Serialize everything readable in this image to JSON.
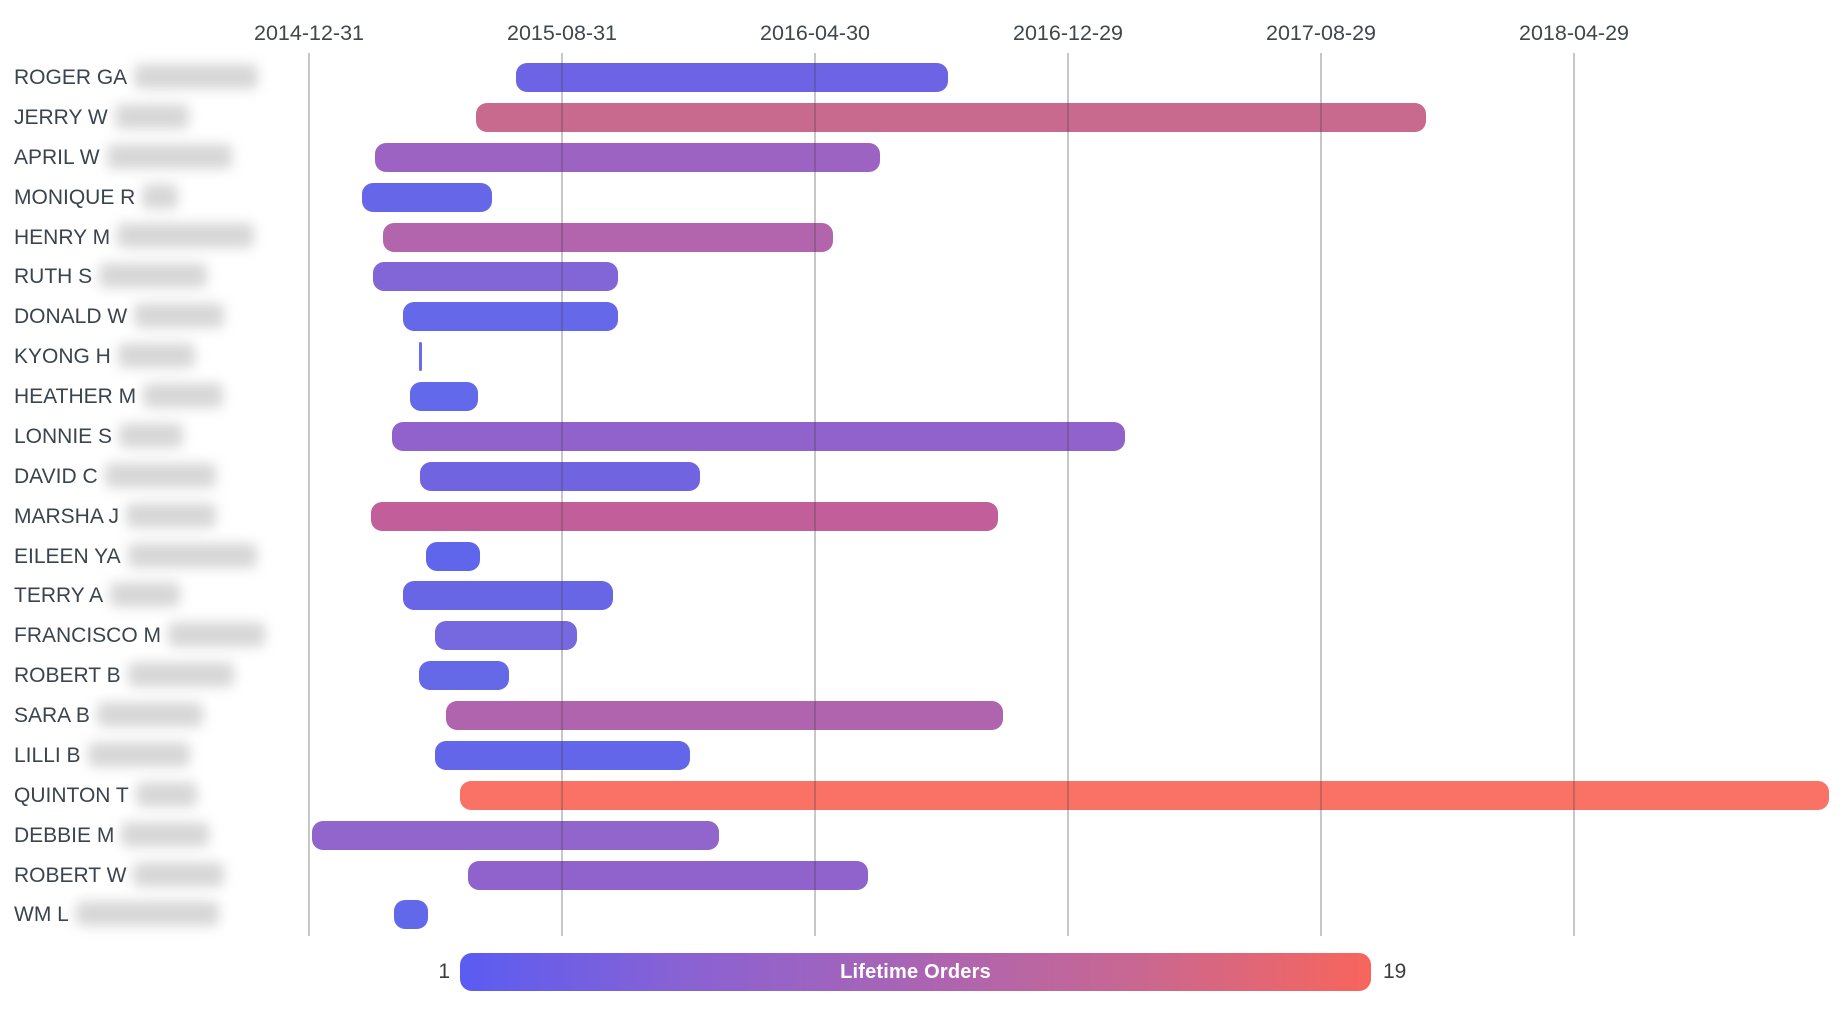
{
  "chart_data": {
    "type": "gantt",
    "title": "",
    "x_axis": {
      "tick_labels": [
        "2014-12-31",
        "2015-08-31",
        "2016-04-30",
        "2016-12-29",
        "2017-08-29",
        "2018-04-29"
      ],
      "tick_interval_days": 243,
      "grid": "vertical-lines"
    },
    "legend": {
      "title": "Lifetime Orders",
      "min_label": "1",
      "max_label": "19",
      "gradient": [
        "#5a5cf2",
        "#8a62d3",
        "#aa64b4",
        "#ca6790",
        "#f8655c"
      ],
      "position": "bottom-center"
    },
    "rows": [
      {
        "label": "ROGER GA",
        "redacted_label_width": 124,
        "start": "2015-07-18",
        "end": "2016-09-05",
        "color": "#6c64e4"
      },
      {
        "label": "JERRY W",
        "redacted_label_width": 74,
        "start": "2015-06-09",
        "end": "2017-12-08",
        "color": "#c76a8e"
      },
      {
        "label": "APRIL W",
        "redacted_label_width": 125,
        "start": "2015-03-04",
        "end": "2016-07-01",
        "color": "#9d63c3"
      },
      {
        "label": "MONIQUE R",
        "redacted_label_width": 36,
        "start": "2015-02-20",
        "end": "2015-06-25",
        "color": "#6567e8"
      },
      {
        "label": "HENRY M",
        "redacted_label_width": 137,
        "start": "2015-03-12",
        "end": "2016-05-17",
        "color": "#b264ac"
      },
      {
        "label": "RUTH S",
        "redacted_label_width": 108,
        "start": "2015-03-02",
        "end": "2015-10-24",
        "color": "#8266d8"
      },
      {
        "label": "DONALD W",
        "redacted_label_width": 90,
        "start": "2015-03-31",
        "end": "2015-10-24",
        "color": "#6568e8"
      },
      {
        "label": "KYONG H",
        "redacted_label_width": 77,
        "start": "2015-04-16",
        "end": "2015-04-19",
        "color": "#6b6ce8"
      },
      {
        "label": "HEATHER M",
        "redacted_label_width": 80,
        "start": "2015-04-07",
        "end": "2015-06-11",
        "color": "#6269ea"
      },
      {
        "label": "LONNIE S",
        "redacted_label_width": 64,
        "start": "2015-03-21",
        "end": "2017-02-22",
        "color": "#9162cb"
      },
      {
        "label": "DAVID C",
        "redacted_label_width": 111,
        "start": "2015-04-17",
        "end": "2016-01-11",
        "color": "#7164e0"
      },
      {
        "label": "MARSHA J",
        "redacted_label_width": 90,
        "start": "2015-03-01",
        "end": "2016-10-23",
        "color": "#c25f9b"
      },
      {
        "label": "EILEEN YA",
        "redacted_label_width": 129,
        "start": "2015-04-22",
        "end": "2015-06-13",
        "color": "#5f66ec"
      },
      {
        "label": "TERRY A",
        "redacted_label_width": 70,
        "start": "2015-03-31",
        "end": "2015-10-19",
        "color": "#6966e5"
      },
      {
        "label": "FRANCISCO M",
        "redacted_label_width": 97,
        "start": "2015-05-01",
        "end": "2015-09-14",
        "color": "#7668de"
      },
      {
        "label": "ROBERT B",
        "redacted_label_width": 106,
        "start": "2015-04-16",
        "end": "2015-07-11",
        "color": "#6569e8"
      },
      {
        "label": "SARA B",
        "redacted_label_width": 106,
        "start": "2015-05-12",
        "end": "2016-10-28",
        "color": "#b164ae"
      },
      {
        "label": "LILLI B",
        "redacted_label_width": 102,
        "start": "2015-05-01",
        "end": "2016-01-01",
        "color": "#6366e9"
      },
      {
        "label": "QUINTON T",
        "redacted_label_width": 61,
        "start": "2015-05-25",
        "end": "2018-12-30",
        "color": "#fa7166"
      },
      {
        "label": "DEBBIE M",
        "redacted_label_width": 88,
        "start": "2015-01-03",
        "end": "2016-01-29",
        "color": "#9165cb"
      },
      {
        "label": "ROBERT W",
        "redacted_label_width": 91,
        "start": "2015-06-02",
        "end": "2016-06-20",
        "color": "#9062cc"
      },
      {
        "label": "WM L",
        "redacted_label_width": 143,
        "start": "2015-03-23",
        "end": "2015-04-24",
        "color": "#6268ea"
      }
    ]
  },
  "colors": {
    "background": "#ffffff",
    "gridline": "rgba(70,70,70,0.30)",
    "axis_text": "#3e474e",
    "row_label_text": "#3a444e",
    "legend_number_text": "#3c3c3c",
    "redaction_fill": "#c2c2c2"
  }
}
